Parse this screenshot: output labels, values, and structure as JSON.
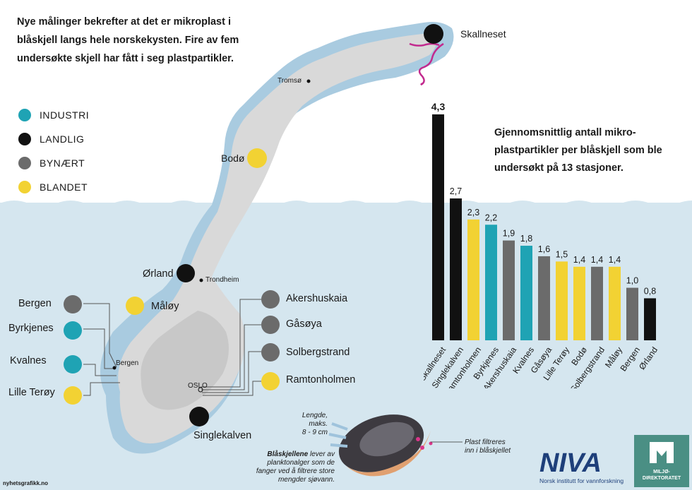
{
  "intro": "Nye målinger bekrefter at det er mikroplast i blåskjell langs hele norskekysten. Fire av fem undersøkte skjell har fått i seg plastpartikler.",
  "legend": [
    {
      "label": "INDUSTRI",
      "color": "#1fa3b4"
    },
    {
      "label": "LANDLIG",
      "color": "#111111"
    },
    {
      "label": "BYNÆRT",
      "color": "#6b6b6b"
    },
    {
      "label": "BLANDET",
      "color": "#f2d233"
    }
  ],
  "map_labels": {
    "skallneset": "Skallneset",
    "tromso": "Tromsø",
    "bodo": "Bodø",
    "orland": "Ørland",
    "trondheim": "Trondheim",
    "maloy": "Måløy",
    "bergen_station": "Bergen",
    "byrkjenes": "Byrkjenes",
    "kvalnes": "Kvalnes",
    "lille_teroy": "Lille Terøy",
    "bergen_city": "Bergen",
    "oslo": "OSLO",
    "akershuskaia": "Akershuskaia",
    "gasoya": "Gåsøya",
    "solbergstrand": "Solbergstrand",
    "ramtonholmen": "Ramtonholmen",
    "singlekalven": "Singlekalven"
  },
  "chart_data": {
    "type": "bar",
    "title": "Gjennomsnittlig antall mikro-plastpartikler per blåskjell som ble undersøkt på 13 stasjoner.",
    "categories": [
      "Skallneset",
      "Singlekalven",
      "Ramtonholmen",
      "Byrkjenes",
      "Akershuskaia",
      "Kvalnes",
      "Gåsøya",
      "Lille Terøy",
      "Bodø",
      "Solbergstrand",
      "Måløy",
      "Bergen",
      "Ørland"
    ],
    "values": [
      4.3,
      2.7,
      2.3,
      2.2,
      1.9,
      1.8,
      1.6,
      1.5,
      1.4,
      1.4,
      1.4,
      1.0,
      0.8
    ],
    "value_labels": [
      "4,3",
      "2,7",
      "2,3",
      "2,2",
      "1,9",
      "1,8",
      "1,6",
      "1,5",
      "1,4",
      "1,4",
      "1,4",
      "1,0",
      "0,8"
    ],
    "bar_colors": [
      "#111111",
      "#111111",
      "#f2d233",
      "#1fa3b4",
      "#6b6b6b",
      "#1fa3b4",
      "#6b6b6b",
      "#f2d233",
      "#f2d233",
      "#6b6b6b",
      "#f2d233",
      "#6b6b6b",
      "#111111"
    ],
    "ylim": [
      0,
      4.3
    ]
  },
  "mussel": {
    "length_line1": "Lengde,",
    "length_line2": "maks.",
    "length_line3": "8 - 9 cm",
    "plast_line1": "Plast filtreres",
    "plast_line2": "inn i blåskjellet",
    "desc_bold": "Blåskjellene",
    "desc_line1": " lever av",
    "desc_line2": "planktonalger som de",
    "desc_line3": "fanger ved å filtrere store",
    "desc_line4": "mengder sjøvann."
  },
  "logos": {
    "niva_mark": "NIVA",
    "niva_text": "Norsk institutt for vannforskning",
    "miljo_line1": "MILJØ-",
    "miljo_line2": "DIREKTORATET"
  },
  "credit": "nyhetsgrafikk.no"
}
